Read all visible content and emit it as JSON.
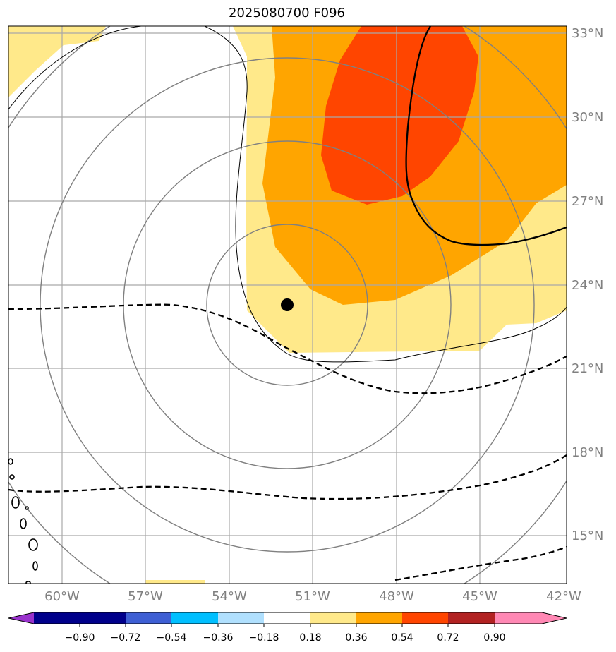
{
  "title": "2025080700 F096",
  "map": {
    "lon_labels": [
      "60°W",
      "57°W",
      "54°W",
      "51°W",
      "48°W",
      "45°W",
      "42°W"
    ],
    "lat_labels": [
      "33°N",
      "30°N",
      "27°N",
      "24°N",
      "21°N",
      "18°N",
      "15°N"
    ],
    "storm_center": {
      "lon": -52,
      "lat": 23.2
    },
    "gridline_color": "#a9a9a9",
    "coastline_color": "#000000"
  },
  "colorbar": {
    "tick_labels": [
      "−0.90",
      "−0.72",
      "−0.54",
      "−0.36",
      "−0.18",
      "0.18",
      "0.36",
      "0.54",
      "0.72",
      "0.90"
    ],
    "colors": [
      "#9932cc",
      "#00008b",
      "#3e5fd4",
      "#00bfff",
      "#b0e0fe",
      "#ffffff",
      "#ffe98a",
      "#ffa500",
      "#ff4500",
      "#b22222",
      "#ff88b4"
    ]
  },
  "fill_colors": {
    "light": "#ffe98a",
    "orange": "#ffa500",
    "red": "#ff4500"
  }
}
